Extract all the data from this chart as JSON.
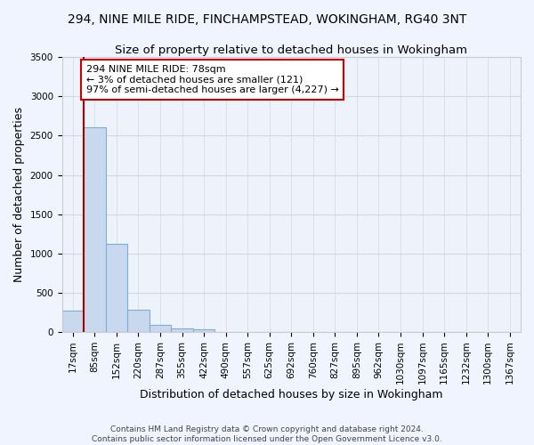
{
  "title_line1": "294, NINE MILE RIDE, FINCHAMPSTEAD, WOKINGHAM, RG40 3NT",
  "title_line2": "Size of property relative to detached houses in Wokingham",
  "xlabel": "Distribution of detached houses by size in Wokingham",
  "ylabel": "Number of detached properties",
  "bar_color": "#c8d8ee",
  "bar_edgecolor": "#7bafd4",
  "vline_color": "#aa0000",
  "annotation_box_edgecolor": "#cc0000",
  "background_color": "#f0f4ff",
  "plot_bg_color": "#eef2fa",
  "grid_color": "#d0d8e8",
  "categories": [
    "17sqm",
    "85sqm",
    "152sqm",
    "220sqm",
    "287sqm",
    "355sqm",
    "422sqm",
    "490sqm",
    "557sqm",
    "625sqm",
    "692sqm",
    "760sqm",
    "827sqm",
    "895sqm",
    "962sqm",
    "1030sqm",
    "1097sqm",
    "1165sqm",
    "1232sqm",
    "1300sqm",
    "1367sqm"
  ],
  "values": [
    270,
    2610,
    1120,
    285,
    90,
    50,
    30,
    0,
    0,
    0,
    0,
    0,
    0,
    0,
    0,
    0,
    0,
    0,
    0,
    0,
    0
  ],
  "ylim": [
    0,
    3500
  ],
  "yticks": [
    0,
    500,
    1000,
    1500,
    2000,
    2500,
    3000,
    3500
  ],
  "annotation_line1": "294 NINE MILE RIDE: 78sqm",
  "annotation_line2": "← 3% of detached houses are smaller (121)",
  "annotation_line3": "97% of semi-detached houses are larger (4,227) →",
  "footnote1": "Contains HM Land Registry data © Crown copyright and database right 2024.",
  "footnote2": "Contains public sector information licensed under the Open Government Licence v3.0.",
  "title_fontsize": 10,
  "subtitle_fontsize": 9.5,
  "axis_label_fontsize": 9,
  "tick_fontsize": 7.5,
  "annotation_fontsize": 8,
  "footnote_fontsize": 6.5
}
